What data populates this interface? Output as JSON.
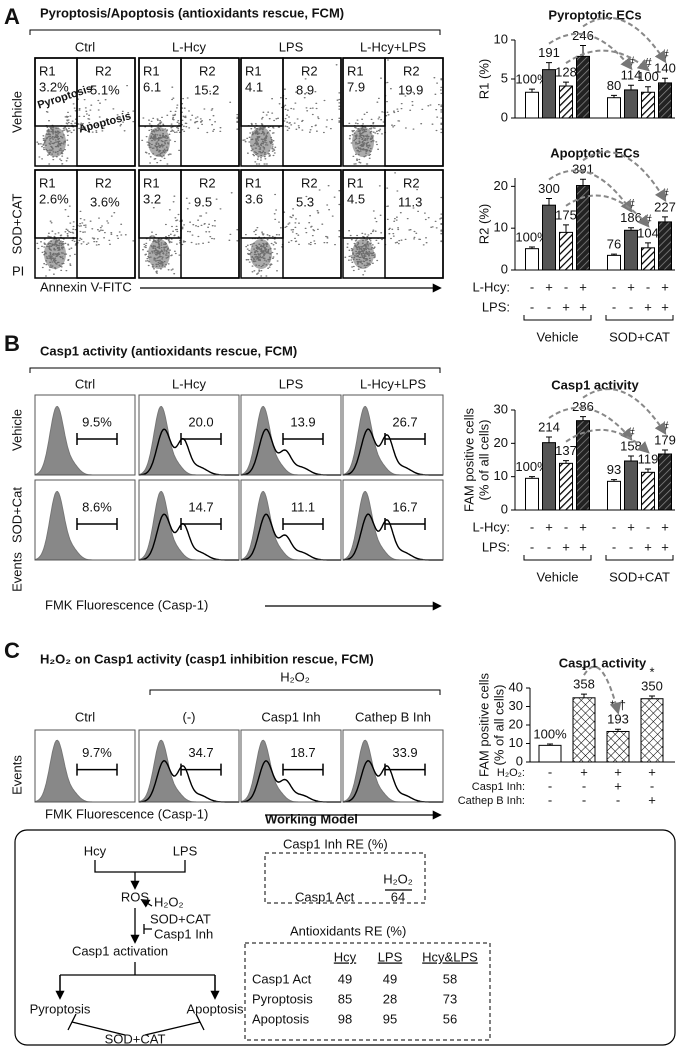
{
  "panel_labels": [
    "A",
    "B",
    "C"
  ],
  "panel_a": {
    "title": "Pyroptosis/Apoptosis (antioxidants rescue, FCM)",
    "columns": [
      "Ctrl",
      "L-Hcy",
      "LPS",
      "L-Hcy+LPS"
    ],
    "rows": [
      "Vehicle",
      "SOD+CAT"
    ],
    "y_axis": "PI",
    "x_axis": "Annexin V-FITC",
    "gate_names": [
      "R1",
      "R2"
    ],
    "gate_notes": [
      "Pyroptosis",
      "Apoptosis"
    ],
    "gates": [
      [
        [
          "3.2%",
          "5.1%"
        ],
        [
          "6.1",
          "15.2"
        ],
        [
          "4.1",
          "8.9"
        ],
        [
          "7.9",
          "19.9"
        ]
      ],
      [
        [
          "2.6%",
          "3.6%"
        ],
        [
          "3.2",
          "9.5"
        ],
        [
          "3.6",
          "5.3"
        ],
        [
          "4.5",
          "11.3"
        ]
      ]
    ]
  },
  "panel_b": {
    "title": "Casp1 activity (antioxidants rescue, FCM)",
    "columns": [
      "Ctrl",
      "L-Hcy",
      "LPS",
      "L-Hcy+LPS"
    ],
    "rows": [
      "Vehicle",
      "SOD+Cat"
    ],
    "y_axis": "Events",
    "x_axis": "FMK Fluorescence (Casp-1)",
    "gates": [
      [
        "9.5%",
        "20.0",
        "13.9",
        "26.7"
      ],
      [
        "8.6%",
        "14.7",
        "11.1",
        "16.7"
      ]
    ]
  },
  "panel_c": {
    "title": "H₂O₂ on Casp1 activity (casp1 inhibition rescue, FCM)",
    "treatment": "H₂O₂",
    "columns": [
      "Ctrl",
      "(-)",
      "Casp1 Inh",
      "Cathep B Inh"
    ],
    "y_axis": "Events",
    "x_axis": "FMK Fluorescence (Casp-1)",
    "gates": [
      "9.7%",
      "34.7",
      "18.7",
      "33.9"
    ]
  },
  "working_model": {
    "title": "Working Model",
    "nodes": {
      "hcy": "Hcy",
      "lps": "LPS",
      "ros": "ROS",
      "h2o2": "H₂O₂",
      "sodcat1": "SOD+CAT",
      "casp1inh": "Casp1 Inh",
      "casp1": "Casp1 activation",
      "pyro": "Pyroptosis",
      "apo": "Apoptosis",
      "sodcat2": "SOD+CAT"
    },
    "casp1_inh_re": {
      "title": "Casp1 Inh RE (%)",
      "header": "H₂O₂",
      "row": [
        "Casp1 Act",
        "64"
      ]
    },
    "antioxidants_re": {
      "title": "Antioxidants RE (%)",
      "header": [
        "Hcy",
        "LPS",
        "Hcy&LPS"
      ],
      "rows": [
        [
          "Casp1 Act",
          "49",
          "49",
          "58"
        ],
        [
          "Pyroptosis",
          "85",
          "28",
          "73"
        ],
        [
          "Apoptosis",
          "98",
          "95",
          "56"
        ]
      ]
    }
  },
  "chart_data": [
    {
      "type": "bar",
      "title": "Pyroptotic ECs",
      "ylabel": "R1 (%)",
      "ylim": [
        0,
        10
      ],
      "yticks": [
        0,
        5,
        10
      ],
      "values": [
        3.3,
        6.2,
        4.1,
        7.9,
        2.6,
        3.6,
        3.3,
        4.5
      ],
      "errors": [
        0.4,
        0.9,
        0.5,
        1.4,
        0.3,
        0.6,
        0.7,
        0.6
      ],
      "annotations": [
        "100%",
        "191",
        "128",
        "246",
        "80",
        "114",
        "100",
        "140"
      ],
      "significance": [
        null,
        null,
        null,
        null,
        null,
        "#",
        "#",
        "#"
      ],
      "bar_styles": [
        "open",
        "solid",
        "hatched",
        "solid-hatched",
        "open",
        "solid",
        "hatched",
        "solid-hatched"
      ]
    },
    {
      "type": "bar",
      "title": "Apoptotic ECs",
      "ylabel": "R2 (%)",
      "ylim": [
        0,
        22
      ],
      "yticks": [
        0,
        10,
        20
      ],
      "values": [
        5.1,
        15.5,
        9,
        20.2,
        3.5,
        9.5,
        5.3,
        11.5
      ],
      "errors": [
        0.4,
        1.6,
        1.8,
        1.5,
        0.3,
        0.6,
        1.2,
        1.2
      ],
      "annotations": [
        "100%",
        "300",
        "175",
        "391",
        "76",
        "186",
        "104",
        "227"
      ],
      "significance": [
        null,
        null,
        null,
        null,
        null,
        "#",
        "#",
        "#"
      ],
      "bar_styles": [
        "open",
        "solid",
        "hatched",
        "solid-hatched",
        "open",
        "solid",
        "hatched",
        "solid-hatched"
      ],
      "factors": [
        {
          "name": "L-Hcy:",
          "levels": [
            "-",
            "+",
            "-",
            "+",
            "-",
            "+",
            "-",
            "+"
          ]
        },
        {
          "name": "LPS:",
          "levels": [
            "-",
            "-",
            "+",
            "+",
            "-",
            "-",
            "+",
            "+"
          ]
        }
      ],
      "groups": [
        "Vehicle",
        "SOD+CAT"
      ]
    },
    {
      "type": "bar",
      "title": "Casp1 activity",
      "ylabel": [
        "FAM positive cells",
        "(% of all cells)"
      ],
      "ylim": [
        0,
        30
      ],
      "yticks": [
        0,
        10,
        20,
        30
      ],
      "values": [
        9.5,
        20.2,
        14,
        26.8,
        8.6,
        14.7,
        11.3,
        16.8
      ],
      "errors": [
        0.5,
        1.7,
        0.8,
        1.2,
        0.5,
        1.5,
        1,
        1.2
      ],
      "annotations": [
        "100%",
        "214",
        "137",
        "286",
        "93",
        "158",
        "119",
        "179"
      ],
      "significance": [
        null,
        null,
        null,
        null,
        null,
        "#",
        null,
        "#"
      ],
      "bar_styles": [
        "open",
        "solid",
        "hatched",
        "solid-hatched",
        "open",
        "solid",
        "hatched",
        "solid-hatched"
      ],
      "factors": [
        {
          "name": "L-Hcy:",
          "levels": [
            "-",
            "+",
            "-",
            "+",
            "-",
            "+",
            "-",
            "+"
          ]
        },
        {
          "name": "LPS:",
          "levels": [
            "-",
            "-",
            "+",
            "+",
            "-",
            "-",
            "+",
            "+"
          ]
        }
      ],
      "groups": [
        "Vehicle",
        "SOD+CAT"
      ]
    },
    {
      "type": "bar",
      "title": "Casp1 activity",
      "ylabel": [
        "FAM positive cells",
        "(% of all cells)"
      ],
      "ylim": [
        0,
        40
      ],
      "yticks": [
        0,
        10,
        20,
        30,
        40
      ],
      "values": [
        9,
        34.7,
        16.5,
        34.2
      ],
      "errors": [
        0.7,
        2,
        1.2,
        1.5
      ],
      "annotations": [
        "100%",
        "358",
        "193",
        "350"
      ],
      "significance": [
        null,
        "*",
        "*,†",
        "*"
      ],
      "bar_styles": [
        "open",
        "cross",
        "cross",
        "cross"
      ],
      "factors": [
        {
          "name": "H₂O₂:",
          "levels": [
            "-",
            "+",
            "+",
            "+"
          ]
        },
        {
          "name": "Casp1 Inh:",
          "levels": [
            "-",
            "-",
            "+",
            "-"
          ]
        },
        {
          "name": "Cathep B Inh:",
          "levels": [
            "-",
            "-",
            "-",
            "+"
          ]
        }
      ]
    }
  ]
}
